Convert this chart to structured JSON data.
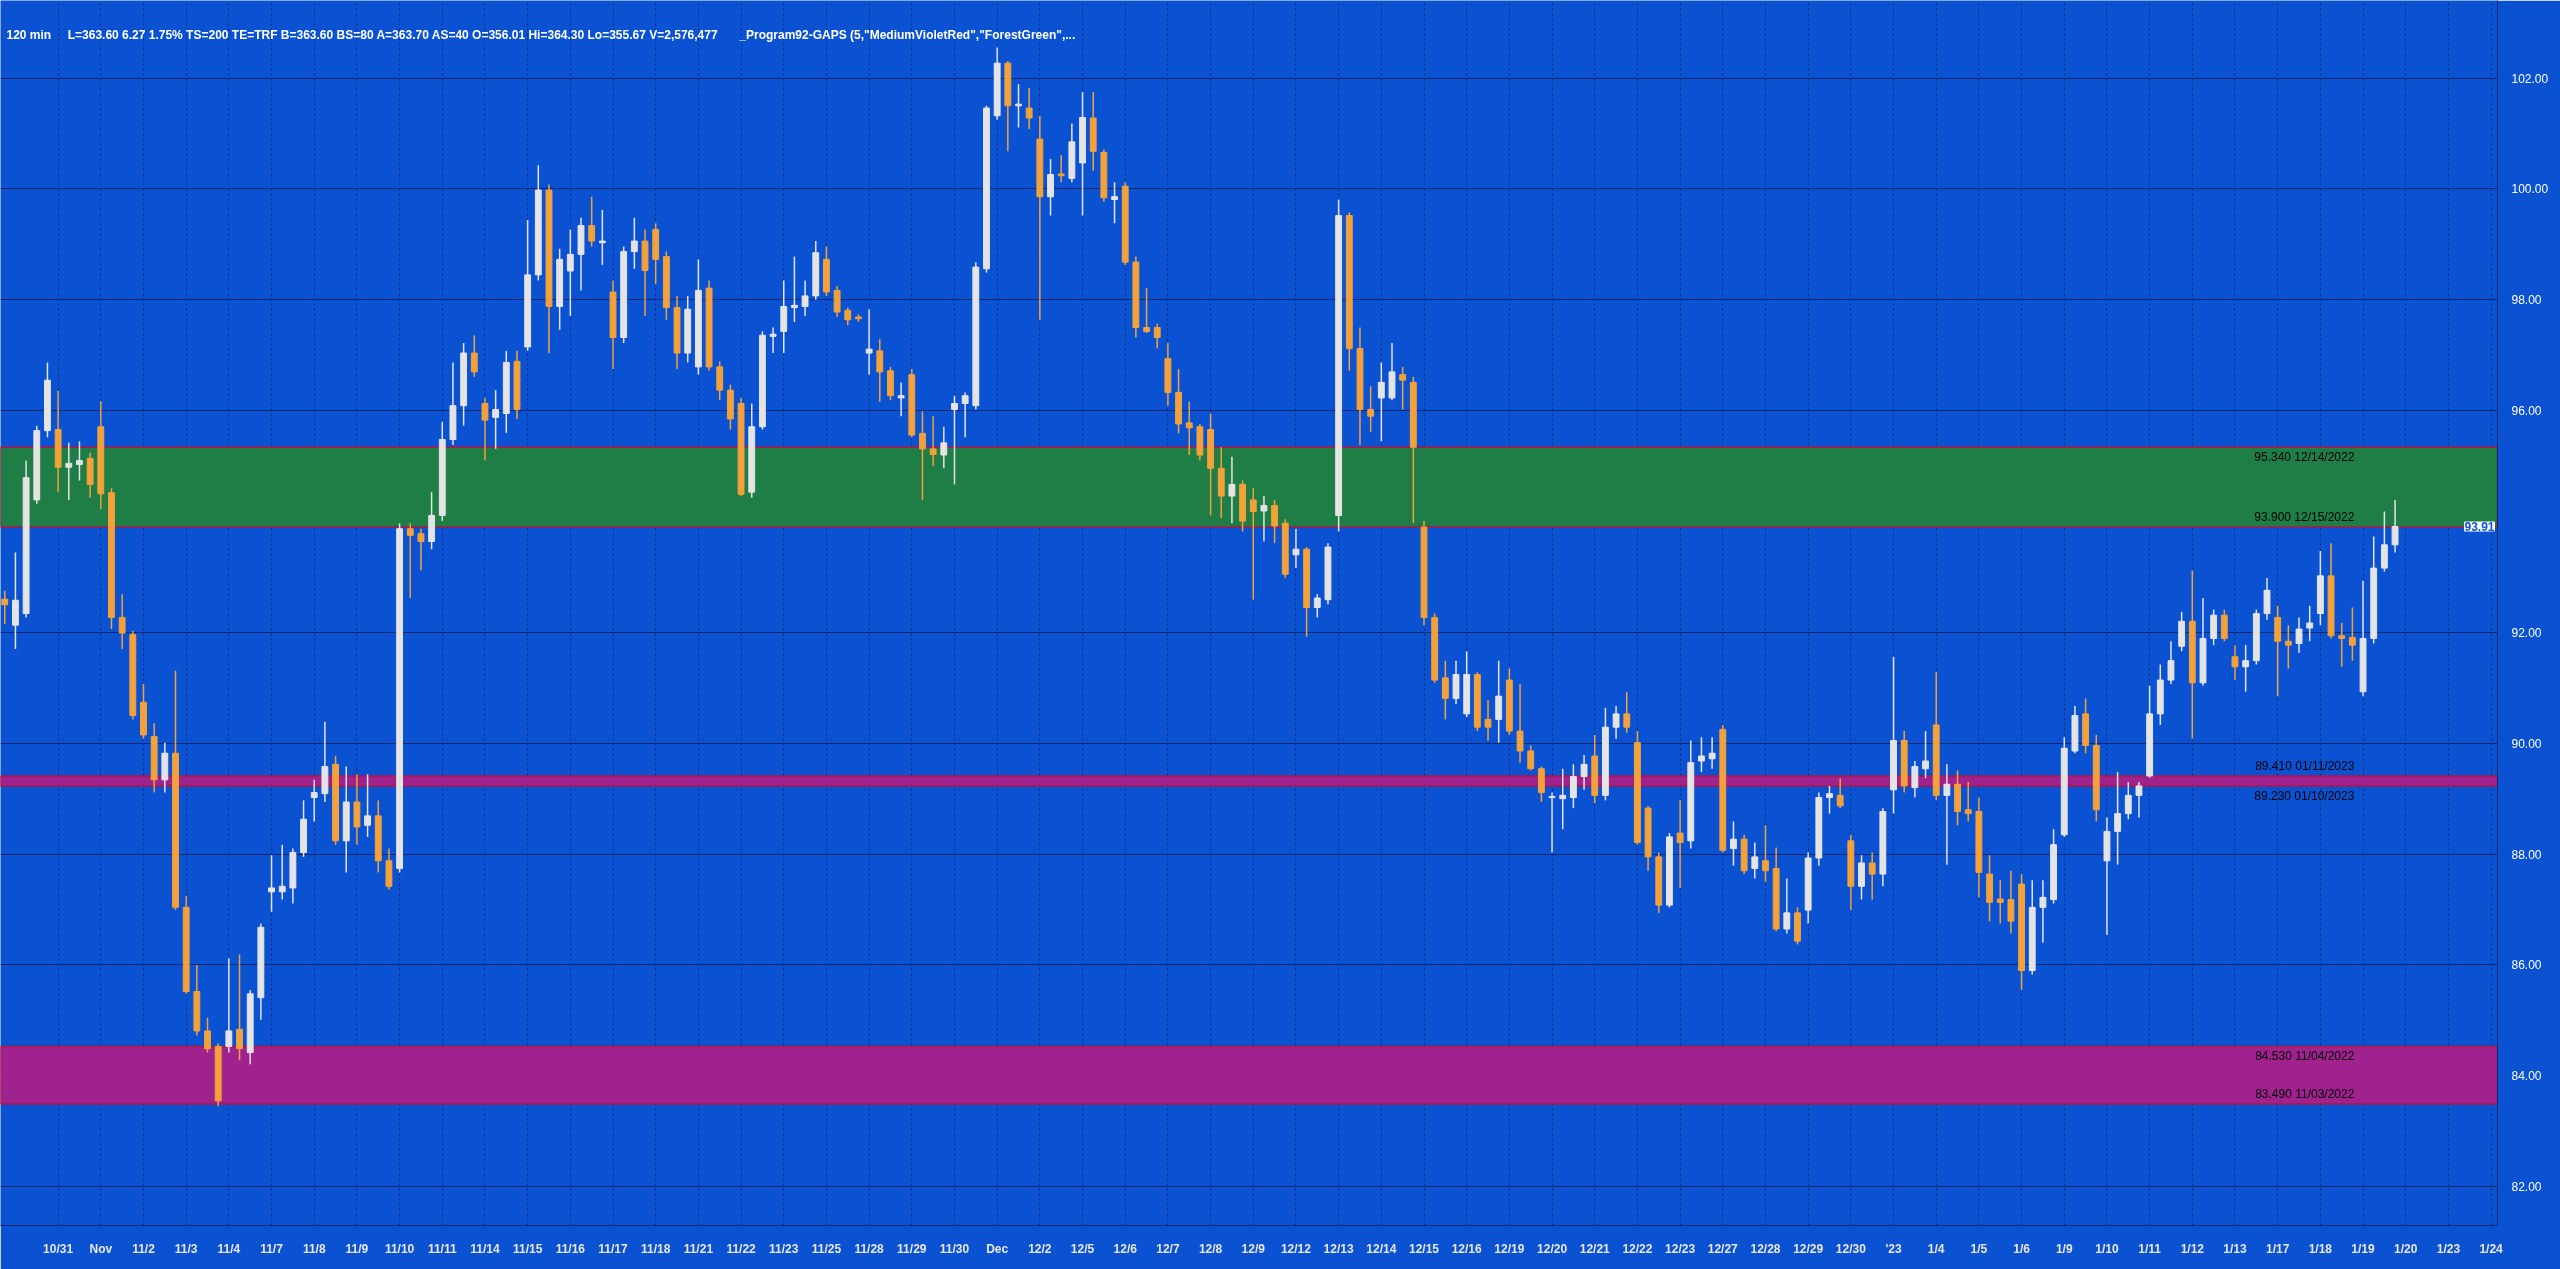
{
  "chart_data": {
    "type": "candlestick",
    "title": "120 min",
    "categories": [
      null,
      null,
      null,
      null,
      null,
      "10/31",
      null,
      null,
      null,
      "Nov",
      null,
      null,
      null,
      "11/2",
      null,
      null,
      null,
      "11/3",
      null,
      null,
      null,
      "11/4",
      null,
      null,
      null,
      "11/7",
      null,
      null,
      null,
      "11/8",
      null,
      null,
      null,
      "11/9",
      null,
      null,
      null,
      "11/10",
      null,
      null,
      null,
      "11/11",
      null,
      null,
      null,
      "11/14",
      null,
      null,
      null,
      "11/15",
      null,
      null,
      null,
      "11/16",
      null,
      null,
      null,
      "11/17",
      null,
      null,
      null,
      "11/18",
      null,
      null,
      null,
      "11/21",
      null,
      null,
      null,
      "11/22",
      null,
      null,
      null,
      "11/23",
      null,
      null,
      null,
      "11/25",
      null,
      null,
      null,
      "11/28",
      null,
      null,
      null,
      "11/29",
      null,
      null,
      null,
      "11/30",
      null,
      null,
      null,
      "Dec",
      null,
      null,
      null,
      "12/2",
      null,
      null,
      null,
      "12/5",
      null,
      null,
      null,
      "12/6",
      null,
      null,
      null,
      "12/7",
      null,
      null,
      null,
      "12/8",
      null,
      null,
      null,
      "12/9",
      null,
      null,
      null,
      "12/12",
      null,
      null,
      null,
      "12/13",
      null,
      null,
      null,
      "12/14",
      null,
      null,
      null,
      "12/15",
      null,
      null,
      null,
      "12/16",
      null,
      null,
      null,
      "12/19",
      null,
      null,
      null,
      "12/20",
      null,
      null,
      null,
      "12/21",
      null,
      null,
      null,
      "12/22",
      null,
      null,
      null,
      "12/23",
      null,
      null,
      null,
      "12/27",
      null,
      null,
      null,
      "12/28",
      null,
      null,
      null,
      "12/29",
      null,
      null,
      null,
      "12/30",
      null,
      null,
      null,
      "'23",
      null,
      null,
      null,
      "1/4",
      null,
      null,
      null,
      "1/5",
      null,
      null,
      null,
      "1/6",
      null,
      null,
      null,
      "1/9",
      null,
      null,
      null,
      "1/10",
      null,
      null,
      null,
      "1/11",
      null,
      null,
      null,
      "1/12",
      null,
      null,
      null,
      "1/13",
      null,
      null,
      null,
      "1/17",
      null,
      null,
      null,
      "1/18",
      null,
      null,
      null,
      "1/19",
      null,
      null,
      null,
      "1/20",
      null,
      null,
      null,
      "1/23",
      null,
      null,
      null,
      "1/24"
    ],
    "ohlc": [
      [
        92.6,
        92.75,
        92.15,
        92.5
      ],
      [
        92.13,
        93.44,
        91.7,
        92.58
      ],
      [
        92.34,
        95.1,
        92.27,
        94.79
      ],
      [
        94.39,
        95.73,
        94.32,
        95.64
      ],
      [
        95.64,
        96.87,
        95.52,
        96.55
      ],
      [
        95.66,
        96.36,
        94.53,
        94.98
      ],
      [
        94.98,
        95.42,
        94.39,
        95.05
      ],
      [
        95.03,
        95.45,
        94.74,
        95.1
      ],
      [
        95.14,
        95.24,
        94.43,
        94.67
      ],
      [
        95.71,
        96.17,
        94.22,
        94.5
      ],
      [
        94.52,
        94.6,
        92.06,
        92.27
      ],
      [
        92.27,
        92.69,
        91.7,
        91.99
      ],
      [
        91.96,
        92.03,
        90.43,
        90.5
      ],
      [
        90.74,
        91.07,
        90.08,
        90.15
      ],
      [
        90.12,
        90.36,
        89.11,
        89.34
      ],
      [
        89.34,
        90.01,
        89.11,
        89.82
      ],
      [
        89.82,
        91.31,
        86.99,
        87.04
      ],
      [
        87.04,
        87.25,
        85.48,
        85.52
      ],
      [
        85.52,
        86.0,
        84.73,
        84.81
      ],
      [
        84.81,
        85.05,
        84.42,
        84.49
      ],
      [
        84.53,
        84.59,
        83.45,
        83.55
      ],
      [
        84.53,
        86.12,
        84.42,
        84.81
      ],
      [
        84.84,
        86.19,
        84.28,
        84.49
      ],
      [
        84.42,
        85.55,
        84.21,
        85.48
      ],
      [
        85.41,
        86.75,
        85.01,
        86.68
      ],
      [
        87.32,
        87.98,
        86.96,
        87.39
      ],
      [
        87.32,
        88.17,
        87.18,
        87.42
      ],
      [
        87.39,
        88.1,
        87.11,
        88.03
      ],
      [
        88.03,
        88.97,
        87.95,
        88.63
      ],
      [
        89.02,
        89.34,
        88.59,
        89.11
      ],
      [
        89.09,
        90.39,
        88.94,
        89.58
      ],
      [
        89.62,
        89.77,
        88.17,
        88.24
      ],
      [
        88.24,
        89.58,
        87.67,
        88.94
      ],
      [
        88.94,
        89.44,
        88.17,
        88.49
      ],
      [
        88.52,
        89.44,
        88.31,
        88.69
      ],
      [
        88.69,
        88.97,
        87.67,
        87.88
      ],
      [
        87.88,
        88.1,
        87.36,
        87.42
      ],
      [
        87.74,
        93.97,
        87.67,
        93.87
      ],
      [
        93.87,
        93.97,
        92.62,
        93.75
      ],
      [
        93.78,
        93.87,
        93.12,
        93.64
      ],
      [
        93.64,
        94.53,
        93.5,
        94.11
      ],
      [
        94.11,
        95.8,
        94.01,
        95.48
      ],
      [
        95.48,
        96.87,
        95.38,
        96.09
      ],
      [
        96.09,
        97.22,
        95.73,
        97.04
      ],
      [
        97.04,
        97.36,
        96.61,
        96.7
      ],
      [
        96.13,
        96.23,
        95.1,
        95.83
      ],
      [
        95.88,
        96.37,
        95.31,
        96.02
      ],
      [
        95.95,
        97.08,
        95.6,
        96.87
      ],
      [
        96.89,
        97.08,
        95.85,
        96.02
      ],
      [
        97.15,
        99.44,
        97.08,
        98.45
      ],
      [
        98.45,
        100.43,
        98.35,
        99.98
      ],
      [
        99.98,
        100.08,
        97.04,
        97.88
      ],
      [
        97.88,
        98.92,
        97.46,
        98.73
      ],
      [
        98.52,
        99.27,
        97.71,
        98.82
      ],
      [
        98.82,
        99.48,
        98.17,
        99.34
      ],
      [
        99.34,
        99.86,
        98.96,
        99.06
      ],
      [
        99.03,
        99.62,
        98.63,
        99.06
      ],
      [
        98.14,
        98.35,
        96.75,
        97.32
      ],
      [
        97.32,
        98.96,
        97.22,
        98.87
      ],
      [
        98.87,
        99.48,
        98.56,
        99.06
      ],
      [
        99.06,
        99.27,
        97.71,
        98.53
      ],
      [
        99.27,
        99.38,
        98.28,
        98.73
      ],
      [
        98.78,
        98.87,
        97.64,
        97.86
      ],
      [
        97.86,
        98.07,
        96.75,
        97.04
      ],
      [
        97.04,
        98.07,
        96.87,
        97.83
      ],
      [
        96.79,
        98.73,
        96.65,
        98.17
      ],
      [
        98.21,
        98.35,
        96.72,
        96.79
      ],
      [
        96.79,
        96.89,
        96.19,
        96.37
      ],
      [
        96.37,
        96.47,
        95.66,
        95.85
      ],
      [
        96.13,
        96.23,
        94.46,
        94.49
      ],
      [
        94.53,
        96.13,
        94.43,
        95.71
      ],
      [
        95.71,
        97.43,
        95.66,
        97.36
      ],
      [
        97.34,
        97.5,
        97.04,
        97.38
      ],
      [
        97.43,
        98.35,
        97.04,
        97.88
      ],
      [
        97.86,
        98.78,
        97.6,
        97.9
      ],
      [
        97.88,
        98.35,
        97.71,
        98.07
      ],
      [
        98.07,
        99.06,
        98.0,
        98.85
      ],
      [
        98.73,
        98.96,
        98.07,
        98.14
      ],
      [
        98.17,
        98.25,
        97.69,
        97.78
      ],
      [
        97.81,
        97.86,
        97.54,
        97.64
      ],
      [
        97.69,
        97.74,
        97.6,
        97.66
      ],
      [
        97.04,
        97.83,
        96.65,
        97.11
      ],
      [
        97.08,
        97.29,
        96.16,
        96.7
      ],
      [
        96.72,
        96.79,
        96.19,
        96.27
      ],
      [
        96.23,
        96.51,
        95.9,
        96.27
      ],
      [
        96.65,
        96.75,
        95.52,
        95.56
      ],
      [
        95.59,
        95.99,
        94.39,
        95.31
      ],
      [
        95.31,
        95.9,
        95.0,
        95.21
      ],
      [
        95.2,
        95.71,
        94.96,
        95.42
      ],
      [
        96.02,
        96.27,
        94.67,
        96.13
      ],
      [
        96.13,
        96.33,
        95.52,
        96.27
      ],
      [
        96.09,
        98.68,
        96.02,
        98.59
      ],
      [
        98.56,
        101.5,
        98.49,
        101.46
      ],
      [
        101.32,
        102.55,
        101.25,
        102.27
      ],
      [
        102.27,
        102.31,
        100.68,
        101.5
      ],
      [
        101.5,
        101.89,
        101.11,
        101.53
      ],
      [
        101.46,
        101.82,
        101.08,
        101.28
      ],
      [
        100.9,
        101.32,
        97.64,
        99.86
      ],
      [
        99.86,
        100.54,
        99.52,
        100.26
      ],
      [
        100.27,
        100.61,
        100.12,
        100.24
      ],
      [
        100.19,
        101.18,
        100.12,
        100.85
      ],
      [
        100.47,
        101.75,
        99.52,
        101.29
      ],
      [
        101.28,
        101.75,
        100.33,
        100.68
      ],
      [
        100.66,
        100.71,
        99.77,
        99.84
      ],
      [
        99.81,
        100.12,
        99.38,
        99.86
      ],
      [
        100.05,
        100.12,
        98.63,
        98.68
      ],
      [
        98.68,
        98.78,
        97.32,
        97.5
      ],
      [
        97.5,
        98.21,
        97.4,
        97.43
      ],
      [
        97.5,
        97.57,
        97.12,
        97.32
      ],
      [
        96.94,
        97.22,
        96.09,
        96.33
      ],
      [
        96.33,
        96.75,
        95.59,
        95.76
      ],
      [
        95.78,
        96.16,
        95.2,
        95.69
      ],
      [
        95.71,
        95.76,
        95.1,
        95.2
      ],
      [
        95.66,
        95.95,
        94.11,
        94.96
      ],
      [
        94.96,
        95.34,
        94.06,
        94.46
      ],
      [
        94.46,
        95.17,
        93.97,
        94.67
      ],
      [
        94.67,
        94.74,
        93.82,
        94.01
      ],
      [
        94.39,
        94.6,
        92.59,
        94.18
      ],
      [
        94.19,
        94.46,
        93.64,
        94.29
      ],
      [
        94.29,
        94.39,
        93.61,
        93.92
      ],
      [
        93.97,
        94.04,
        92.98,
        93.05
      ],
      [
        93.4,
        93.87,
        93.16,
        93.5
      ],
      [
        93.5,
        93.54,
        91.92,
        92.45
      ],
      [
        92.45,
        92.69,
        92.27,
        92.62
      ],
      [
        92.59,
        93.61,
        92.51,
        93.54
      ],
      [
        94.11,
        99.81,
        93.82,
        99.52
      ],
      [
        99.52,
        99.58,
        96.72,
        97.12
      ],
      [
        97.12,
        97.5,
        95.38,
        96.02
      ],
      [
        96.02,
        96.44,
        95.62,
        95.9
      ],
      [
        96.23,
        96.87,
        95.45,
        96.51
      ],
      [
        96.23,
        97.22,
        96.19,
        96.7
      ],
      [
        96.65,
        96.79,
        96.02,
        96.55
      ],
      [
        96.51,
        96.61,
        93.97,
        95.34
      ],
      [
        93.9,
        94.01,
        92.13,
        92.27
      ],
      [
        92.27,
        92.34,
        91.09,
        91.14
      ],
      [
        91.18,
        91.49,
        90.43,
        90.81
      ],
      [
        90.81,
        91.49,
        90.71,
        91.24
      ],
      [
        90.53,
        91.66,
        90.47,
        91.24
      ],
      [
        91.24,
        91.28,
        90.22,
        90.29
      ],
      [
        90.43,
        90.78,
        90.05,
        90.29
      ],
      [
        90.43,
        91.49,
        90.01,
        90.85
      ],
      [
        91.14,
        91.35,
        90.15,
        90.22
      ],
      [
        90.22,
        91.07,
        89.65,
        89.86
      ],
      [
        89.86,
        89.96,
        89.51,
        89.54
      ],
      [
        89.54,
        89.58,
        88.94,
        89.11
      ],
      [
        89.02,
        89.11,
        88.03,
        89.04
      ],
      [
        89.0,
        89.54,
        88.45,
        89.06
      ],
      [
        89.02,
        89.62,
        88.83,
        89.4
      ],
      [
        89.4,
        89.79,
        89.16,
        89.62
      ],
      [
        89.77,
        90.15,
        88.92,
        89.06
      ],
      [
        89.06,
        90.64,
        88.97,
        90.29
      ],
      [
        90.29,
        90.67,
        90.08,
        90.53
      ],
      [
        90.53,
        90.92,
        90.19,
        90.29
      ],
      [
        90.01,
        90.22,
        88.17,
        88.21
      ],
      [
        88.83,
        88.87,
        87.7,
        87.95
      ],
      [
        87.95,
        88.03,
        86.94,
        87.08
      ],
      [
        87.08,
        88.38,
        87.04,
        88.31
      ],
      [
        88.38,
        88.97,
        87.39,
        88.21
      ],
      [
        88.24,
        90.05,
        88.1,
        89.65
      ],
      [
        89.68,
        90.11,
        89.48,
        89.77
      ],
      [
        89.72,
        90.11,
        89.54,
        89.82
      ],
      [
        90.25,
        90.33,
        88.03,
        88.07
      ],
      [
        88.1,
        88.59,
        87.79,
        88.27
      ],
      [
        88.27,
        88.35,
        87.64,
        87.7
      ],
      [
        87.74,
        88.21,
        87.56,
        87.95
      ],
      [
        87.88,
        88.52,
        87.5,
        87.7
      ],
      [
        87.74,
        88.12,
        86.61,
        86.65
      ],
      [
        86.65,
        87.56,
        86.57,
        86.94
      ],
      [
        86.94,
        87.04,
        86.37,
        86.43
      ],
      [
        86.99,
        88.03,
        86.75,
        87.93
      ],
      [
        87.93,
        89.11,
        87.79,
        89.02
      ],
      [
        89.02,
        89.23,
        88.73,
        89.09
      ],
      [
        89.06,
        89.37,
        88.83,
        88.87
      ],
      [
        88.24,
        88.35,
        86.99,
        87.42
      ],
      [
        87.42,
        87.98,
        87.18,
        87.84
      ],
      [
        87.84,
        88.03,
        87.18,
        87.64
      ],
      [
        87.64,
        88.83,
        87.42,
        88.77
      ],
      [
        89.16,
        91.56,
        88.73,
        90.05
      ],
      [
        90.05,
        90.22,
        89.11,
        89.23
      ],
      [
        89.2,
        89.68,
        89.02,
        89.58
      ],
      [
        89.54,
        90.22,
        89.37,
        89.68
      ],
      [
        90.33,
        91.28,
        88.97,
        89.06
      ],
      [
        89.06,
        89.62,
        87.81,
        89.26
      ],
      [
        89.26,
        89.51,
        88.52,
        88.77
      ],
      [
        88.8,
        89.3,
        88.59,
        88.73
      ],
      [
        88.77,
        89.02,
        87.22,
        87.67
      ],
      [
        87.64,
        87.98,
        86.79,
        87.13
      ],
      [
        87.19,
        87.53,
        86.75,
        87.13
      ],
      [
        87.18,
        87.7,
        86.57,
        86.79
      ],
      [
        87.46,
        87.64,
        85.55,
        85.9
      ],
      [
        85.9,
        87.53,
        85.83,
        87.04
      ],
      [
        87.04,
        87.53,
        86.4,
        87.22
      ],
      [
        87.18,
        88.45,
        87.11,
        88.17
      ],
      [
        88.35,
        90.11,
        88.31,
        89.91
      ],
      [
        89.86,
        90.67,
        89.82,
        90.5
      ],
      [
        90.53,
        90.81,
        89.82,
        89.96
      ],
      [
        89.96,
        90.15,
        88.59,
        88.8
      ],
      [
        87.88,
        88.66,
        86.54,
        88.41
      ],
      [
        88.41,
        89.48,
        87.81,
        88.73
      ],
      [
        88.73,
        89.3,
        88.63,
        89.06
      ],
      [
        89.06,
        89.3,
        88.66,
        89.23
      ],
      [
        89.41,
        91.04,
        89.38,
        90.53
      ],
      [
        90.53,
        91.42,
        90.33,
        91.14
      ],
      [
        91.14,
        91.84,
        91.07,
        91.49
      ],
      [
        91.75,
        92.37,
        91.66,
        92.2
      ],
      [
        92.2,
        93.12,
        90.08,
        91.09
      ],
      [
        91.09,
        92.62,
        91.04,
        91.89
      ],
      [
        91.89,
        92.41,
        91.77,
        92.31
      ],
      [
        92.31,
        92.41,
        91.84,
        91.89
      ],
      [
        91.56,
        91.77,
        91.14,
        91.38
      ],
      [
        91.38,
        91.77,
        90.93,
        91.49
      ],
      [
        91.49,
        92.41,
        91.42,
        92.34
      ],
      [
        92.34,
        92.98,
        92.23,
        92.76
      ],
      [
        92.27,
        92.48,
        90.85,
        91.84
      ],
      [
        91.84,
        92.13,
        91.35,
        91.77
      ],
      [
        91.8,
        92.27,
        91.63,
        92.06
      ],
      [
        92.08,
        92.48,
        91.84,
        92.17
      ],
      [
        92.34,
        93.47,
        92.13,
        93.02
      ],
      [
        93.02,
        93.61,
        91.89,
        91.94
      ],
      [
        91.94,
        92.17,
        91.38,
        91.89
      ],
      [
        91.91,
        92.45,
        91.49,
        91.77
      ],
      [
        90.93,
        92.93,
        90.85,
        91.89
      ],
      [
        91.89,
        93.73,
        91.8,
        93.16
      ],
      [
        93.16,
        94.18,
        93.1,
        93.58
      ],
      [
        93.58,
        94.39,
        93.44,
        93.91
      ],
      null,
      null,
      null,
      null,
      null,
      null,
      null,
      null,
      null
    ],
    "colors": [
      "#f2a13b",
      "#e4e4e4",
      "#e4e4e4",
      "#e4e4e4",
      "#e4e4e4",
      "#f2a13b",
      "#e4e4e4",
      "#e4e4e4",
      "#f2a13b",
      "#f2a13b",
      "#f2a13b",
      "#f2a13b",
      "#f2a13b",
      "#f2a13b",
      "#f2a13b",
      "#e4e4e4",
      "#f2a13b",
      "#f2a13b",
      "#f2a13b",
      "#f2a13b",
      "#f2a13b",
      "#e4e4e4",
      "#f2a13b",
      "#e4e4e4",
      "#e4e4e4",
      "#e4e4e4",
      "#e4e4e4",
      "#e4e4e4",
      "#e4e4e4",
      "#e4e4e4",
      "#e4e4e4",
      "#f2a13b",
      "#e4e4e4",
      "#f2a13b",
      "#e4e4e4",
      "#f2a13b",
      "#f2a13b",
      "#e4e4e4",
      "#f2a13b",
      "#f2a13b",
      "#e4e4e4",
      "#e4e4e4",
      "#e4e4e4",
      "#e4e4e4",
      "#f2a13b",
      "#f2a13b",
      "#e4e4e4",
      "#e4e4e4",
      "#f2a13b",
      "#e4e4e4",
      "#e4e4e4",
      "#f2a13b",
      "#e4e4e4",
      "#e4e4e4",
      "#e4e4e4",
      "#f2a13b",
      "#e4e4e4",
      "#f2a13b",
      "#e4e4e4",
      "#e4e4e4",
      "#f2a13b",
      "#f2a13b",
      "#f2a13b",
      "#f2a13b",
      "#e4e4e4",
      "#e4e4e4",
      "#f2a13b",
      "#f2a13b",
      "#f2a13b",
      "#f2a13b",
      "#e4e4e4",
      "#e4e4e4",
      "#e4e4e4",
      "#e4e4e4",
      "#e4e4e4",
      "#e4e4e4",
      "#e4e4e4",
      "#f2a13b",
      "#f2a13b",
      "#f2a13b",
      "#f2a13b",
      "#e4e4e4",
      "#f2a13b",
      "#f2a13b",
      "#e4e4e4",
      "#f2a13b",
      "#f2a13b",
      "#f2a13b",
      "#e4e4e4",
      "#e4e4e4",
      "#e4e4e4",
      "#e4e4e4",
      "#e4e4e4",
      "#e4e4e4",
      "#f2a13b",
      "#e4e4e4",
      "#f2a13b",
      "#f2a13b",
      "#e4e4e4",
      "#f2a13b",
      "#e4e4e4",
      "#e4e4e4",
      "#f2a13b",
      "#f2a13b",
      "#e4e4e4",
      "#f2a13b",
      "#f2a13b",
      "#f2a13b",
      "#f2a13b",
      "#f2a13b",
      "#f2a13b",
      "#f2a13b",
      "#f2a13b",
      "#f2a13b",
      "#f2a13b",
      "#e4e4e4",
      "#f2a13b",
      "#f2a13b",
      "#e4e4e4",
      "#f2a13b",
      "#f2a13b",
      "#e4e4e4",
      "#f2a13b",
      "#e4e4e4",
      "#e4e4e4",
      "#e4e4e4",
      "#f2a13b",
      "#f2a13b",
      "#f2a13b",
      "#e4e4e4",
      "#e4e4e4",
      "#f2a13b",
      "#f2a13b",
      "#f2a13b",
      "#f2a13b",
      "#f2a13b",
      "#e4e4e4",
      "#e4e4e4",
      "#f2a13b",
      "#f2a13b",
      "#e4e4e4",
      "#f2a13b",
      "#f2a13b",
      "#f2a13b",
      "#f2a13b",
      "#e4e4e4",
      "#e4e4e4",
      "#e4e4e4",
      "#e4e4e4",
      "#f2a13b",
      "#e4e4e4",
      "#e4e4e4",
      "#f2a13b",
      "#f2a13b",
      "#f2a13b",
      "#f2a13b",
      "#e4e4e4",
      "#f2a13b",
      "#e4e4e4",
      "#e4e4e4",
      "#e4e4e4",
      "#f2a13b",
      "#e4e4e4",
      "#f2a13b",
      "#e4e4e4",
      "#f2a13b",
      "#f2a13b",
      "#e4e4e4",
      "#f2a13b",
      "#e4e4e4",
      "#e4e4e4",
      "#e4e4e4",
      "#f2a13b",
      "#f2a13b",
      "#e4e4e4",
      "#f2a13b",
      "#e4e4e4",
      "#e4e4e4",
      "#f2a13b",
      "#e4e4e4",
      "#e4e4e4",
      "#f2a13b",
      "#e4e4e4",
      "#f2a13b",
      "#f2a13b",
      "#f2a13b",
      "#f2a13b",
      "#f2a13b",
      "#f2a13b",
      "#f2a13b",
      "#e4e4e4",
      "#e4e4e4",
      "#e4e4e4",
      "#e4e4e4",
      "#e4e4e4",
      "#f2a13b",
      "#f2a13b",
      "#e4e4e4",
      "#e4e4e4",
      "#e4e4e4",
      "#e4e4e4",
      "#e4e4e4",
      "#e4e4e4",
      "#e4e4e4",
      "#e4e4e4",
      "#f2a13b",
      "#e4e4e4",
      "#e4e4e4",
      "#f2a13b",
      "#f2a13b",
      "#e4e4e4",
      "#e4e4e4",
      "#e4e4e4",
      "#f2a13b",
      "#f2a13b",
      "#e4e4e4",
      "#e4e4e4",
      "#e4e4e4",
      "#f2a13b",
      "#f2a13b",
      "#f2a13b",
      "#e4e4e4",
      "#e4e4e4",
      "#e4e4e4",
      "#e4e4e4",
      null,
      null,
      null,
      null,
      null,
      null,
      null,
      null,
      null
    ],
    "ylim": [
      81.3,
      103.4
    ],
    "yticks": [
      {
        "value": 82,
        "label": "82.00"
      },
      {
        "value": 84,
        "label": "84.00"
      },
      {
        "value": 86,
        "label": "86.00"
      },
      {
        "value": 88,
        "label": "88.00"
      },
      {
        "value": 90,
        "label": "90.00"
      },
      {
        "value": 92,
        "label": "92.00"
      },
      {
        "value": 94,
        "label": null
      },
      {
        "value": 96,
        "label": "96.00"
      },
      {
        "value": 98,
        "label": "98.00"
      },
      {
        "value": 100,
        "label": "100.00"
      },
      {
        "value": 102,
        "label": "102.00"
      }
    ],
    "grid": true,
    "bands": [
      {
        "axis": "y",
        "from": 83.49,
        "to": 84.53,
        "color": "#a0228f"
      },
      {
        "axis": "y",
        "from": 93.9,
        "to": 95.34,
        "color": "#1e7e45"
      },
      {
        "axis": "y",
        "from": 89.23,
        "to": 89.41,
        "color": "#a0228f"
      }
    ],
    "annotations": [
      "L=363.60  6.27  1.75%  TS=200  TE=TRF  B=363.60  BS=80  A=363.70  AS=40  O=356.01  Hi=364.30  Lo=355.67  V=2,576,477",
      "_Program92-GAPS (5,\"MediumVioletRed\",\"ForestGreen\",...",
      {
        "text": "95.340  12/14/2022",
        "y": 95.34
      },
      {
        "text": "93.900  12/15/2022",
        "y": 93.9
      },
      {
        "text": "89.410  01/11/2023",
        "y": 89.41
      },
      {
        "text": "89.230  01/10/2023",
        "y": 89.23
      },
      {
        "text": "84.530  11/04/2022",
        "y": 84.53
      },
      {
        "text": "83.490  11/03/2022",
        "y": 83.49
      },
      {
        "text": "93.91",
        "y": 93.91
      }
    ]
  }
}
